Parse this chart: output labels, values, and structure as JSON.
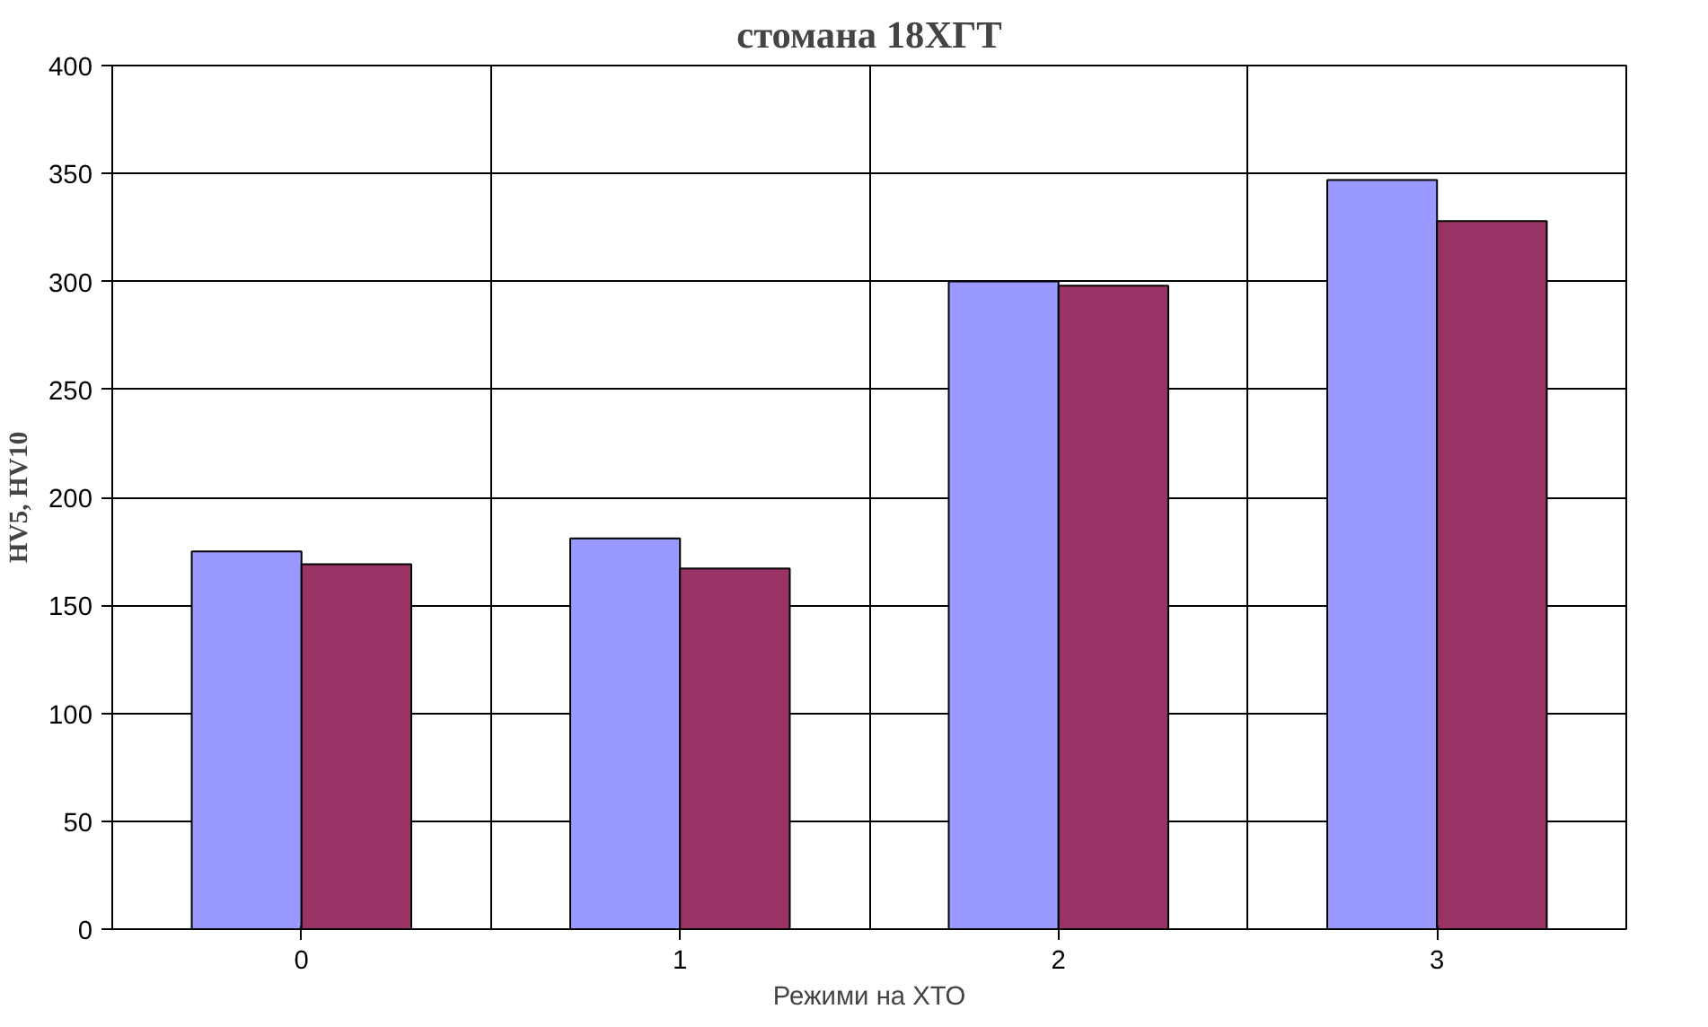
{
  "chart_data": {
    "type": "bar",
    "title": "стомана 18ХГТ",
    "xlabel": "Режими на ХТО",
    "ylabel": "HV5, HV10",
    "categories": [
      "0",
      "1",
      "2",
      "3"
    ],
    "series": [
      {
        "color": "#9999ff",
        "values": [
          175,
          181,
          300,
          347
        ]
      },
      {
        "color": "#993366",
        "values": [
          169,
          167,
          298,
          328
        ]
      }
    ],
    "ylim": [
      0,
      400
    ],
    "yticks": [
      0,
      50,
      100,
      150,
      200,
      250,
      300,
      350,
      400
    ],
    "grid": true
  }
}
